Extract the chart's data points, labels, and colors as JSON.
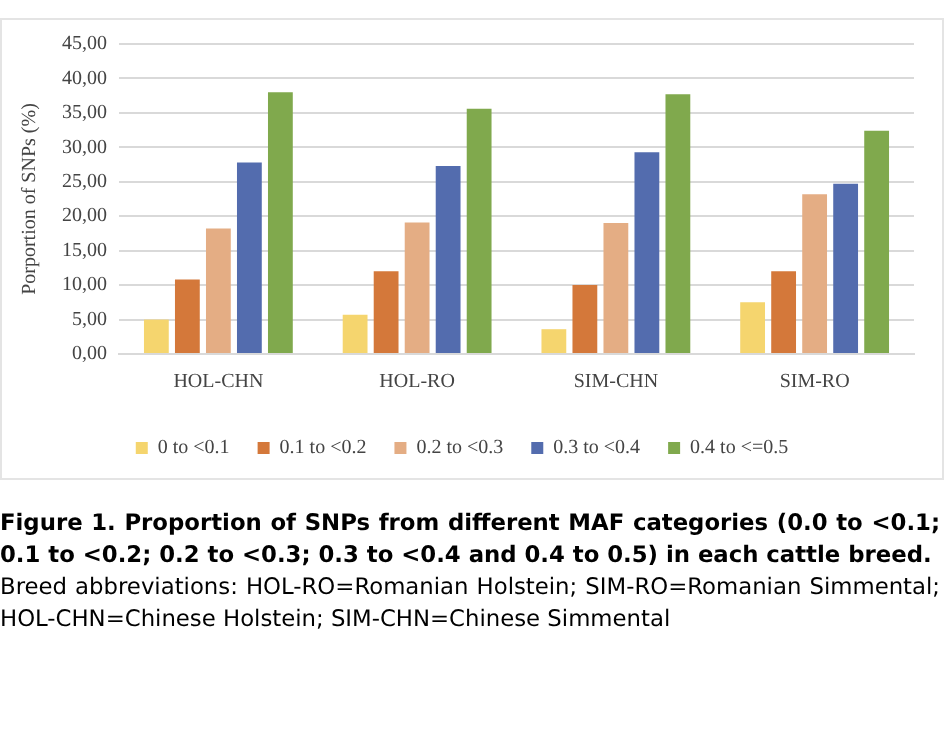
{
  "chart_data": {
    "type": "bar",
    "ylabel": "Porportion of SNPs (%)",
    "categories": [
      "HOL-CHN",
      "HOL-RO",
      "SIM-CHN",
      "SIM-RO"
    ],
    "series": [
      {
        "name": "0 to <0.1",
        "color": "#f5d56e",
        "values": [
          5.0,
          5.7,
          3.6,
          7.5
        ]
      },
      {
        "name": "0.1 to <0.2",
        "color": "#d4783a",
        "values": [
          10.8,
          12.0,
          10.0,
          12.0
        ]
      },
      {
        "name": "0.2 to <0.3",
        "color": "#e4ad84",
        "values": [
          18.2,
          19.1,
          19.0,
          23.2
        ]
      },
      {
        "name": "0.3 to <0.4",
        "color": "#536cae",
        "values": [
          27.8,
          27.3,
          29.3,
          24.7
        ]
      },
      {
        "name": "0.4 to <=0.5",
        "color": "#80a94d",
        "values": [
          38.0,
          35.6,
          37.7,
          32.4
        ]
      }
    ],
    "ylim": [
      0,
      45
    ],
    "yticks": [
      {
        "value": 0,
        "label": "0,00"
      },
      {
        "value": 5,
        "label": "5,00"
      },
      {
        "value": 10,
        "label": "10,00"
      },
      {
        "value": 15,
        "label": "15,00"
      },
      {
        "value": 20,
        "label": "20,00"
      },
      {
        "value": 25,
        "label": "25,00"
      },
      {
        "value": 30,
        "label": "30,00"
      },
      {
        "value": 35,
        "label": "35,00"
      },
      {
        "value": 40,
        "label": "40,00"
      },
      {
        "value": 45,
        "label": "45,00"
      }
    ],
    "grid": "y",
    "legend": "bottom",
    "annotations": [
      "Figure 1. Proportion of SNPs from different MAF categories (0.0 to <0.1; 0.1 to <0.2; 0.2 to <0.3; 0.3 to <0.4 and 0.4 to 0.5) in each cattle breed.",
      "Breed abbreviations: HOL-RO=Romanian Holstein; SIM-RO=Romanian Simmental; HOL-CHN=Chinese Holstein; SIM-CHN=Chinese Simmental"
    ]
  }
}
